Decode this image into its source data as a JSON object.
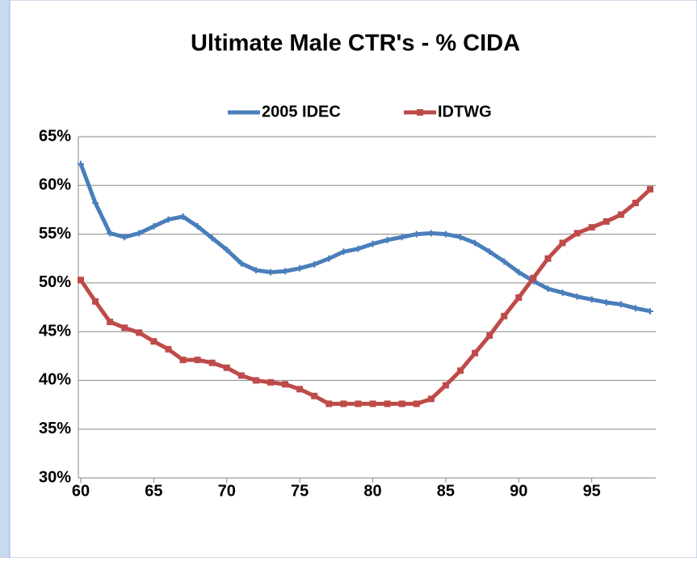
{
  "chart_data": {
    "type": "line",
    "title": "Ultimate Male CTR's - % CIDA",
    "x": [
      60,
      61,
      62,
      63,
      64,
      65,
      66,
      67,
      68,
      69,
      70,
      71,
      72,
      73,
      74,
      75,
      76,
      77,
      78,
      79,
      80,
      81,
      82,
      83,
      84,
      85,
      86,
      87,
      88,
      89,
      90,
      91,
      92,
      93,
      94,
      95,
      96,
      97,
      98,
      99
    ],
    "series": [
      {
        "name": "2005 IDEC",
        "color": "#4a7ebb",
        "values": [
          62.2,
          58.2,
          55.1,
          54.7,
          55.1,
          55.8,
          56.5,
          56.8,
          55.8,
          54.6,
          53.4,
          52.0,
          51.3,
          51.1,
          51.2,
          51.5,
          51.9,
          52.5,
          53.2,
          53.5,
          54.0,
          54.4,
          54.7,
          55.0,
          55.1,
          55.0,
          54.7,
          54.1,
          53.2,
          52.2,
          51.1,
          50.2,
          49.4,
          49.0,
          48.6,
          48.3,
          48.0,
          47.8,
          47.4,
          47.1
        ]
      },
      {
        "name": "IDTWG",
        "color": "#be4b48",
        "values": [
          50.3,
          48.1,
          46.0,
          45.4,
          44.9,
          44.0,
          43.2,
          42.1,
          42.1,
          41.8,
          41.3,
          40.5,
          40.0,
          39.8,
          39.6,
          39.1,
          38.4,
          37.6,
          37.6,
          37.6,
          37.6,
          37.6,
          37.6,
          37.6,
          38.1,
          39.5,
          41.0,
          42.8,
          44.6,
          46.6,
          48.5,
          50.5,
          52.5,
          54.1,
          55.1,
          55.7,
          56.3,
          57.0,
          58.2,
          59.6
        ]
      }
    ],
    "xlim": [
      60,
      99
    ],
    "xticks": [
      60,
      65,
      70,
      75,
      80,
      85,
      90,
      95
    ],
    "ylim": [
      30,
      65
    ],
    "yticks": [
      {
        "value": 30,
        "label": "30%"
      },
      {
        "value": 35,
        "label": "35%"
      },
      {
        "value": 40,
        "label": "40%"
      },
      {
        "value": 45,
        "label": "45%"
      },
      {
        "value": 50,
        "label": "50%"
      },
      {
        "value": 55,
        "label": "55%"
      },
      {
        "value": 60,
        "label": "60%"
      },
      {
        "value": 65,
        "label": "65%"
      }
    ],
    "grid": true,
    "legend": "top"
  }
}
